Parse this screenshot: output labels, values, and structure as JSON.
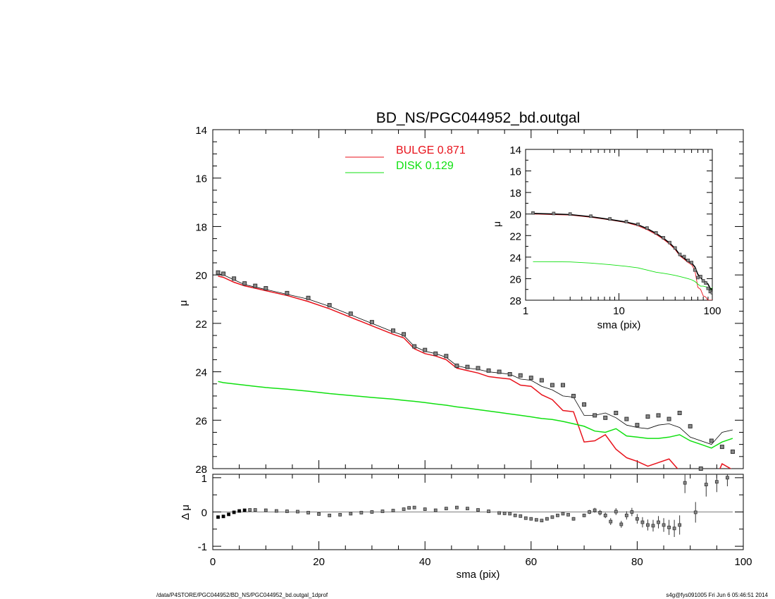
{
  "title": "BD_NS/PGC044952_bd.outgal",
  "footer_left": "/data/P4STORE/PGC044952/BD_NS/PGC044952_bd.outgal_1dprof",
  "footer_right": "s4g@fys091005  Fri Jun  6 05:46:51 2014",
  "colors": {
    "bulge": "#e8121b",
    "disk": "#10e010",
    "total": "#000000",
    "data": "#333333",
    "data_fill": "#888888"
  },
  "chart_data": [
    {
      "type": "line",
      "panel": "main",
      "title": "BD_NS/PGC044952_bd.outgal",
      "xlabel": "",
      "ylabel": "μ",
      "xlim": [
        0,
        100
      ],
      "ylim": [
        28,
        14
      ],
      "yticks": [
        "14",
        "16",
        "18",
        "20",
        "22",
        "24",
        "26",
        "28"
      ],
      "legend": [
        {
          "name": "BULGE",
          "value": "0.871",
          "color": "#e8121b"
        },
        {
          "name": "DISK",
          "value": "0.129",
          "color": "#10e010"
        }
      ],
      "x": [
        1,
        2,
        4,
        6,
        8,
        10,
        14,
        18,
        22,
        26,
        30,
        34,
        36,
        38,
        40,
        42,
        44,
        46,
        48,
        50,
        52,
        54,
        56,
        58,
        60,
        62,
        64,
        66,
        68,
        70,
        72,
        74,
        76,
        78,
        80,
        82,
        84,
        86,
        88,
        90,
        92,
        94,
        96,
        98
      ],
      "series": [
        {
          "name": "BULGE",
          "values": [
            20.05,
            20.1,
            20.3,
            20.45,
            20.55,
            20.65,
            20.85,
            21.1,
            21.4,
            21.75,
            22.1,
            22.45,
            22.6,
            23.05,
            23.25,
            23.35,
            23.5,
            23.85,
            23.95,
            24.05,
            24.2,
            24.25,
            24.3,
            24.55,
            24.6,
            24.95,
            25.15,
            25.6,
            25.65,
            26.9,
            26.85,
            26.6,
            27.2,
            27.55,
            27.7,
            27.9,
            27.75,
            27.6,
            28.1,
            28.9,
            28.4,
            28.8,
            27.8,
            28.05
          ]
        },
        {
          "name": "DISK",
          "values": [
            24.4,
            24.45,
            24.5,
            24.55,
            24.6,
            24.65,
            24.72,
            24.8,
            24.9,
            24.98,
            25.06,
            25.13,
            25.18,
            25.22,
            25.27,
            25.33,
            25.38,
            25.45,
            25.5,
            25.56,
            25.62,
            25.68,
            25.74,
            25.8,
            25.86,
            25.93,
            25.97,
            26.05,
            26.15,
            26.25,
            26.45,
            26.5,
            26.35,
            26.65,
            26.7,
            26.75,
            26.75,
            26.7,
            26.6,
            26.85,
            27.0,
            27.15,
            26.9,
            26.75
          ]
        },
        {
          "name": "total",
          "values": [
            19.95,
            20.0,
            20.2,
            20.4,
            20.5,
            20.6,
            20.8,
            21.0,
            21.3,
            21.65,
            22.0,
            22.35,
            22.5,
            22.95,
            23.15,
            23.25,
            23.4,
            23.75,
            23.85,
            23.9,
            24.0,
            24.05,
            24.1,
            24.3,
            24.35,
            24.6,
            24.75,
            25.0,
            25.05,
            25.8,
            25.8,
            25.7,
            25.9,
            26.2,
            26.3,
            26.35,
            26.2,
            26.15,
            26.3,
            26.7,
            26.85,
            27.0,
            26.5,
            26.4
          ]
        },
        {
          "name": "data",
          "values": [
            19.9,
            19.95,
            20.15,
            20.35,
            20.45,
            20.55,
            20.75,
            20.95,
            21.25,
            21.6,
            21.95,
            22.3,
            22.45,
            22.95,
            23.1,
            23.25,
            23.35,
            23.75,
            23.8,
            23.85,
            23.95,
            24.0,
            24.1,
            24.15,
            24.25,
            24.35,
            24.55,
            24.55,
            25.0,
            25.35,
            25.8,
            25.9,
            25.7,
            25.95,
            26.2,
            25.85,
            25.8,
            25.95,
            25.7,
            26.25,
            28.0,
            26.85,
            27.1,
            27.3
          ]
        }
      ]
    },
    {
      "type": "line",
      "panel": "residual",
      "xlabel": "sma (pix)",
      "ylabel": "Δ μ",
      "xlim": [
        0,
        100
      ],
      "ylim": [
        -1.1,
        1.1
      ],
      "xticks": [
        "0",
        "20",
        "40",
        "60",
        "80",
        "100"
      ],
      "yticks": [
        "1",
        "0",
        "-1"
      ],
      "x": [
        1,
        2,
        3,
        4,
        5,
        6,
        7,
        8,
        10,
        12,
        14,
        16,
        18,
        20,
        22,
        24,
        26,
        28,
        30,
        32,
        34,
        36,
        37,
        38,
        40,
        42,
        44,
        46,
        48,
        50,
        52,
        54,
        55,
        56,
        57,
        58,
        59,
        60,
        61,
        62,
        63,
        64,
        65,
        66,
        67,
        68,
        70,
        71,
        72,
        73,
        74,
        75,
        76,
        77,
        78,
        79,
        80,
        81,
        82,
        83,
        84,
        85,
        86,
        87,
        88,
        89,
        91,
        93,
        95,
        97
      ],
      "values": [
        -0.15,
        -0.13,
        -0.07,
        -0.01,
        0.03,
        0.05,
        0.06,
        0.06,
        0.05,
        0.03,
        0.02,
        0.01,
        -0.02,
        -0.06,
        -0.1,
        -0.08,
        -0.05,
        -0.02,
        0.0,
        0.02,
        0.04,
        0.08,
        0.12,
        0.13,
        0.08,
        0.05,
        0.1,
        0.13,
        0.1,
        0.06,
        0.02,
        -0.03,
        -0.04,
        -0.05,
        -0.1,
        -0.12,
        -0.18,
        -0.2,
        -0.23,
        -0.25,
        -0.2,
        -0.15,
        -0.1,
        -0.05,
        -0.08,
        -0.2,
        -0.1,
        0.0,
        0.05,
        -0.02,
        -0.1,
        -0.28,
        0.01,
        -0.36,
        -0.1,
        0.0,
        -0.2,
        -0.3,
        -0.38,
        -0.4,
        -0.3,
        -0.38,
        -0.45,
        -0.48,
        -0.38,
        0.85,
        -0.01,
        0.8,
        0.88,
        1.0
      ],
      "errors": [
        0.01,
        0.01,
        0.01,
        0.01,
        0.01,
        0.01,
        0.01,
        0.01,
        0.01,
        0.01,
        0.01,
        0.01,
        0.01,
        0.01,
        0.01,
        0.01,
        0.01,
        0.01,
        0.01,
        0.01,
        0.01,
        0.01,
        0.01,
        0.01,
        0.01,
        0.01,
        0.01,
        0.01,
        0.01,
        0.01,
        0.01,
        0.01,
        0.01,
        0.02,
        0.02,
        0.02,
        0.02,
        0.02,
        0.02,
        0.03,
        0.03,
        0.03,
        0.03,
        0.04,
        0.04,
        0.05,
        0.05,
        0.06,
        0.07,
        0.08,
        0.08,
        0.1,
        0.1,
        0.1,
        0.12,
        0.12,
        0.14,
        0.15,
        0.16,
        0.17,
        0.18,
        0.2,
        0.22,
        0.25,
        0.28,
        0.3,
        0.3,
        0.35,
        0.3,
        0.25
      ]
    },
    {
      "type": "line",
      "panel": "inset",
      "xlabel": "sma (pix)",
      "ylabel": "μ",
      "xscale": "log",
      "xlim": [
        1,
        100
      ],
      "ylim": [
        28,
        14
      ],
      "xticks": [
        "1",
        "10",
        "100"
      ],
      "yticks": [
        "14",
        "16",
        "18",
        "20",
        "22",
        "24",
        "26",
        "28"
      ],
      "x": [
        1.2,
        2,
        3,
        5,
        8,
        12,
        16,
        20,
        25,
        30,
        35,
        40,
        45,
        50,
        55,
        60,
        65,
        70,
        75,
        80,
        85,
        90,
        95,
        100
      ],
      "series": [
        {
          "name": "BULGE",
          "values": [
            20.0,
            20.05,
            20.1,
            20.3,
            20.55,
            20.8,
            21.1,
            21.45,
            21.9,
            22.35,
            22.8,
            23.3,
            23.9,
            24.2,
            24.5,
            24.7,
            25.2,
            26.8,
            27.0,
            27.6,
            27.7,
            28.0,
            28.0,
            28.0
          ]
        },
        {
          "name": "DISK",
          "values": [
            24.42,
            24.43,
            24.45,
            24.55,
            24.7,
            24.85,
            25.0,
            25.2,
            25.4,
            25.5,
            25.6,
            25.7,
            25.8,
            25.9,
            26.0,
            26.1,
            26.25,
            26.5,
            26.7,
            26.7,
            26.75,
            26.8,
            27.1,
            26.8
          ]
        },
        {
          "name": "total",
          "values": [
            19.95,
            20.0,
            20.05,
            20.25,
            20.5,
            20.75,
            21.0,
            21.35,
            21.8,
            22.25,
            22.7,
            23.2,
            23.8,
            24.1,
            24.4,
            24.55,
            24.9,
            25.6,
            25.9,
            26.2,
            26.3,
            26.5,
            26.9,
            27.0
          ]
        },
        {
          "name": "data",
          "values": [
            19.9,
            19.95,
            20.0,
            20.2,
            20.45,
            20.7,
            20.95,
            21.3,
            21.75,
            22.2,
            22.65,
            23.15,
            23.75,
            23.95,
            24.3,
            24.5,
            25.2,
            25.9,
            25.8,
            26.2,
            26.4,
            26.9,
            27.2,
            27.3
          ]
        }
      ]
    }
  ]
}
